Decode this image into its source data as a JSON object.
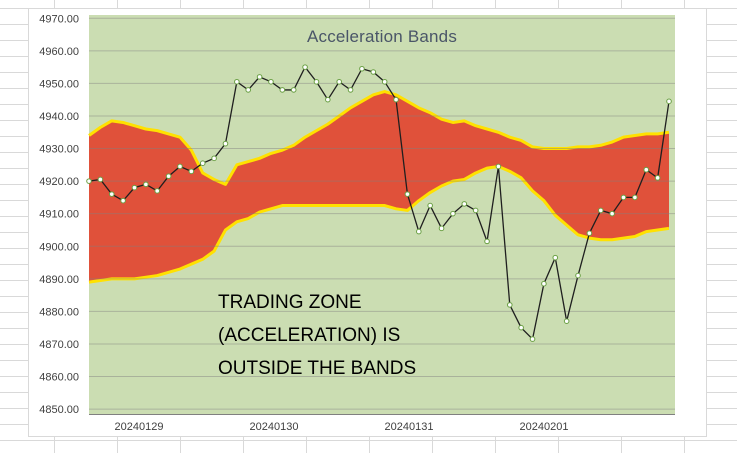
{
  "chart_data": {
    "type": "line",
    "title": "Acceleration Bands",
    "annotation": [
      "TRADING ZONE",
      "(ACCELERATION) IS",
      "OUTSIDE THE BANDS"
    ],
    "x_axis_labels": [
      "20240129",
      "20240130",
      "20240131",
      "20240201"
    ],
    "y_ticks": [
      "4850.00",
      "4860.00",
      "4870.00",
      "4880.00",
      "4890.00",
      "4900.00",
      "4910.00",
      "4920.00",
      "4930.00",
      "4940.00",
      "4950.00",
      "4960.00",
      "4970.00"
    ],
    "ylim": [
      4848.5,
      4971
    ],
    "points_per_day": 13,
    "series": [
      {
        "name": "price",
        "values": [
          4920,
          4920.5,
          4916,
          4914,
          4918,
          4919,
          4917,
          4921.5,
          4924.5,
          4923,
          4925.5,
          4927,
          4931.5,
          4950.5,
          4948,
          4952,
          4950.5,
          4948,
          4948,
          4955,
          4950.5,
          4945,
          4950.5,
          4948,
          4954.5,
          4953.5,
          4950.5,
          4945,
          4916,
          4904.5,
          4912.5,
          4905.5,
          4910,
          4913,
          4911,
          4901.5,
          4924.5,
          4882,
          4875,
          4871.5,
          4888.5,
          4896.5,
          4877,
          4891,
          4904,
          4911,
          4910,
          4915,
          4915,
          4923.5,
          4921,
          4944.5
        ]
      },
      {
        "name": "upper_band",
        "values": [
          4934,
          4936.5,
          4938.5,
          4938,
          4937,
          4936,
          4935.5,
          4934.5,
          4933.5,
          4929.5,
          4922.5,
          4920.5,
          4919,
          4925,
          4926,
          4927,
          4928.5,
          4929.5,
          4931,
          4933.5,
          4935.5,
          4937.5,
          4940,
          4942.5,
          4944.5,
          4946.5,
          4947.5,
          4946.5,
          4944.5,
          4942.5,
          4941,
          4939,
          4938,
          4938.5,
          4937,
          4936,
          4935,
          4933.5,
          4932.5,
          4930.5,
          4930,
          4930,
          4930,
          4930.5,
          4930.5,
          4931,
          4932,
          4933.5,
          4934,
          4934.5,
          4934.5,
          4935
        ]
      },
      {
        "name": "lower_band",
        "values": [
          4889,
          4889.5,
          4890,
          4890,
          4890,
          4890.5,
          4891,
          4892,
          4893,
          4894.5,
          4896,
          4898.5,
          4905,
          4907.5,
          4908.5,
          4910.5,
          4911.5,
          4912.5,
          4912.5,
          4912.5,
          4912.5,
          4912.5,
          4912.5,
          4912.5,
          4912.5,
          4912.5,
          4912.5,
          4911.5,
          4911,
          4914,
          4916.5,
          4918.5,
          4920,
          4920.5,
          4922.5,
          4924,
          4924.5,
          4923,
          4921,
          4917,
          4914,
          4909.5,
          4906.5,
          4903.5,
          4902.5,
          4902,
          4902,
          4902.5,
          4903,
          4904.5,
          4905,
          4905.5
        ]
      }
    ],
    "colors": {
      "plot_background": "#cbddb2",
      "band_fill": "#e0513a",
      "band_border": "#ffe100",
      "price_line": "#1f1f1f",
      "marker_fill": "#ffffff",
      "marker_border": "#6ba045",
      "gridline": "#808080",
      "axis_text": "#404040",
      "title_color": "#4a5568"
    }
  }
}
